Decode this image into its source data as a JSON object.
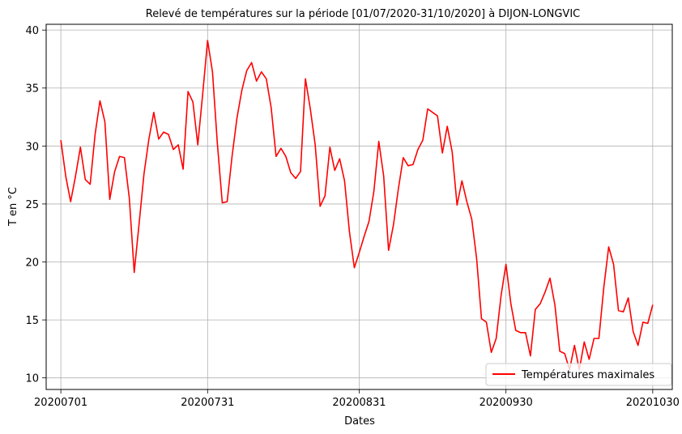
{
  "chart_data": {
    "type": "line",
    "title": "Relevé de températures sur la période [01/07/2020-31/10/2020] à DIJON-LONGVIC",
    "xlabel": "Dates",
    "ylabel": "T en °C",
    "xlim": [
      -3,
      125
    ],
    "ylim": [
      9.0,
      40.5
    ],
    "x_ticks": [
      {
        "index": 0,
        "label": "20200701"
      },
      {
        "index": 30,
        "label": "20200731"
      },
      {
        "index": 61,
        "label": "20200831"
      },
      {
        "index": 91,
        "label": "20200930"
      },
      {
        "index": 121,
        "label": "20201030"
      }
    ],
    "y_ticks": [
      10,
      15,
      20,
      25,
      30,
      35,
      40
    ],
    "grid": true,
    "legend_position": "lower-right",
    "series": [
      {
        "name": "Températures maximales",
        "color": "#ff0000",
        "values": [
          30.5,
          27.4,
          25.2,
          27.4,
          29.9,
          27.1,
          26.7,
          31.0,
          33.9,
          32.1,
          25.4,
          27.8,
          29.1,
          29.0,
          25.5,
          19.1,
          23.3,
          27.6,
          30.6,
          32.9,
          30.6,
          31.2,
          31.0,
          29.7,
          30.1,
          28.0,
          34.7,
          33.8,
          30.1,
          34.5,
          39.1,
          36.4,
          30.2,
          25.1,
          25.2,
          29.1,
          32.4,
          34.8,
          36.5,
          37.2,
          35.6,
          36.4,
          35.8,
          33.3,
          29.1,
          29.8,
          29.1,
          27.7,
          27.2,
          27.8,
          35.8,
          33.2,
          30.1,
          24.8,
          25.7,
          29.9,
          27.9,
          28.9,
          27.0,
          22.6,
          19.5,
          20.8,
          22.2,
          23.5,
          26.1,
          30.4,
          27.4,
          21.0,
          23.2,
          26.3,
          29.0,
          28.3,
          28.4,
          29.7,
          30.5,
          33.2,
          32.9,
          32.6,
          29.4,
          31.7,
          29.5,
          24.9,
          27.0,
          25.2,
          23.7,
          20.3,
          15.1,
          14.8,
          12.2,
          13.4,
          17.1,
          19.8,
          16.4,
          14.1,
          13.9,
          13.9,
          11.9,
          15.9,
          16.4,
          17.4,
          18.6,
          16.3,
          12.3,
          12.1,
          10.7,
          12.8,
          10.7,
          13.1,
          11.6,
          13.4,
          13.4,
          17.8,
          21.3,
          19.8,
          15.8,
          15.7,
          16.9,
          14.0,
          12.8,
          14.8,
          14.7,
          16.3
        ]
      }
    ]
  }
}
